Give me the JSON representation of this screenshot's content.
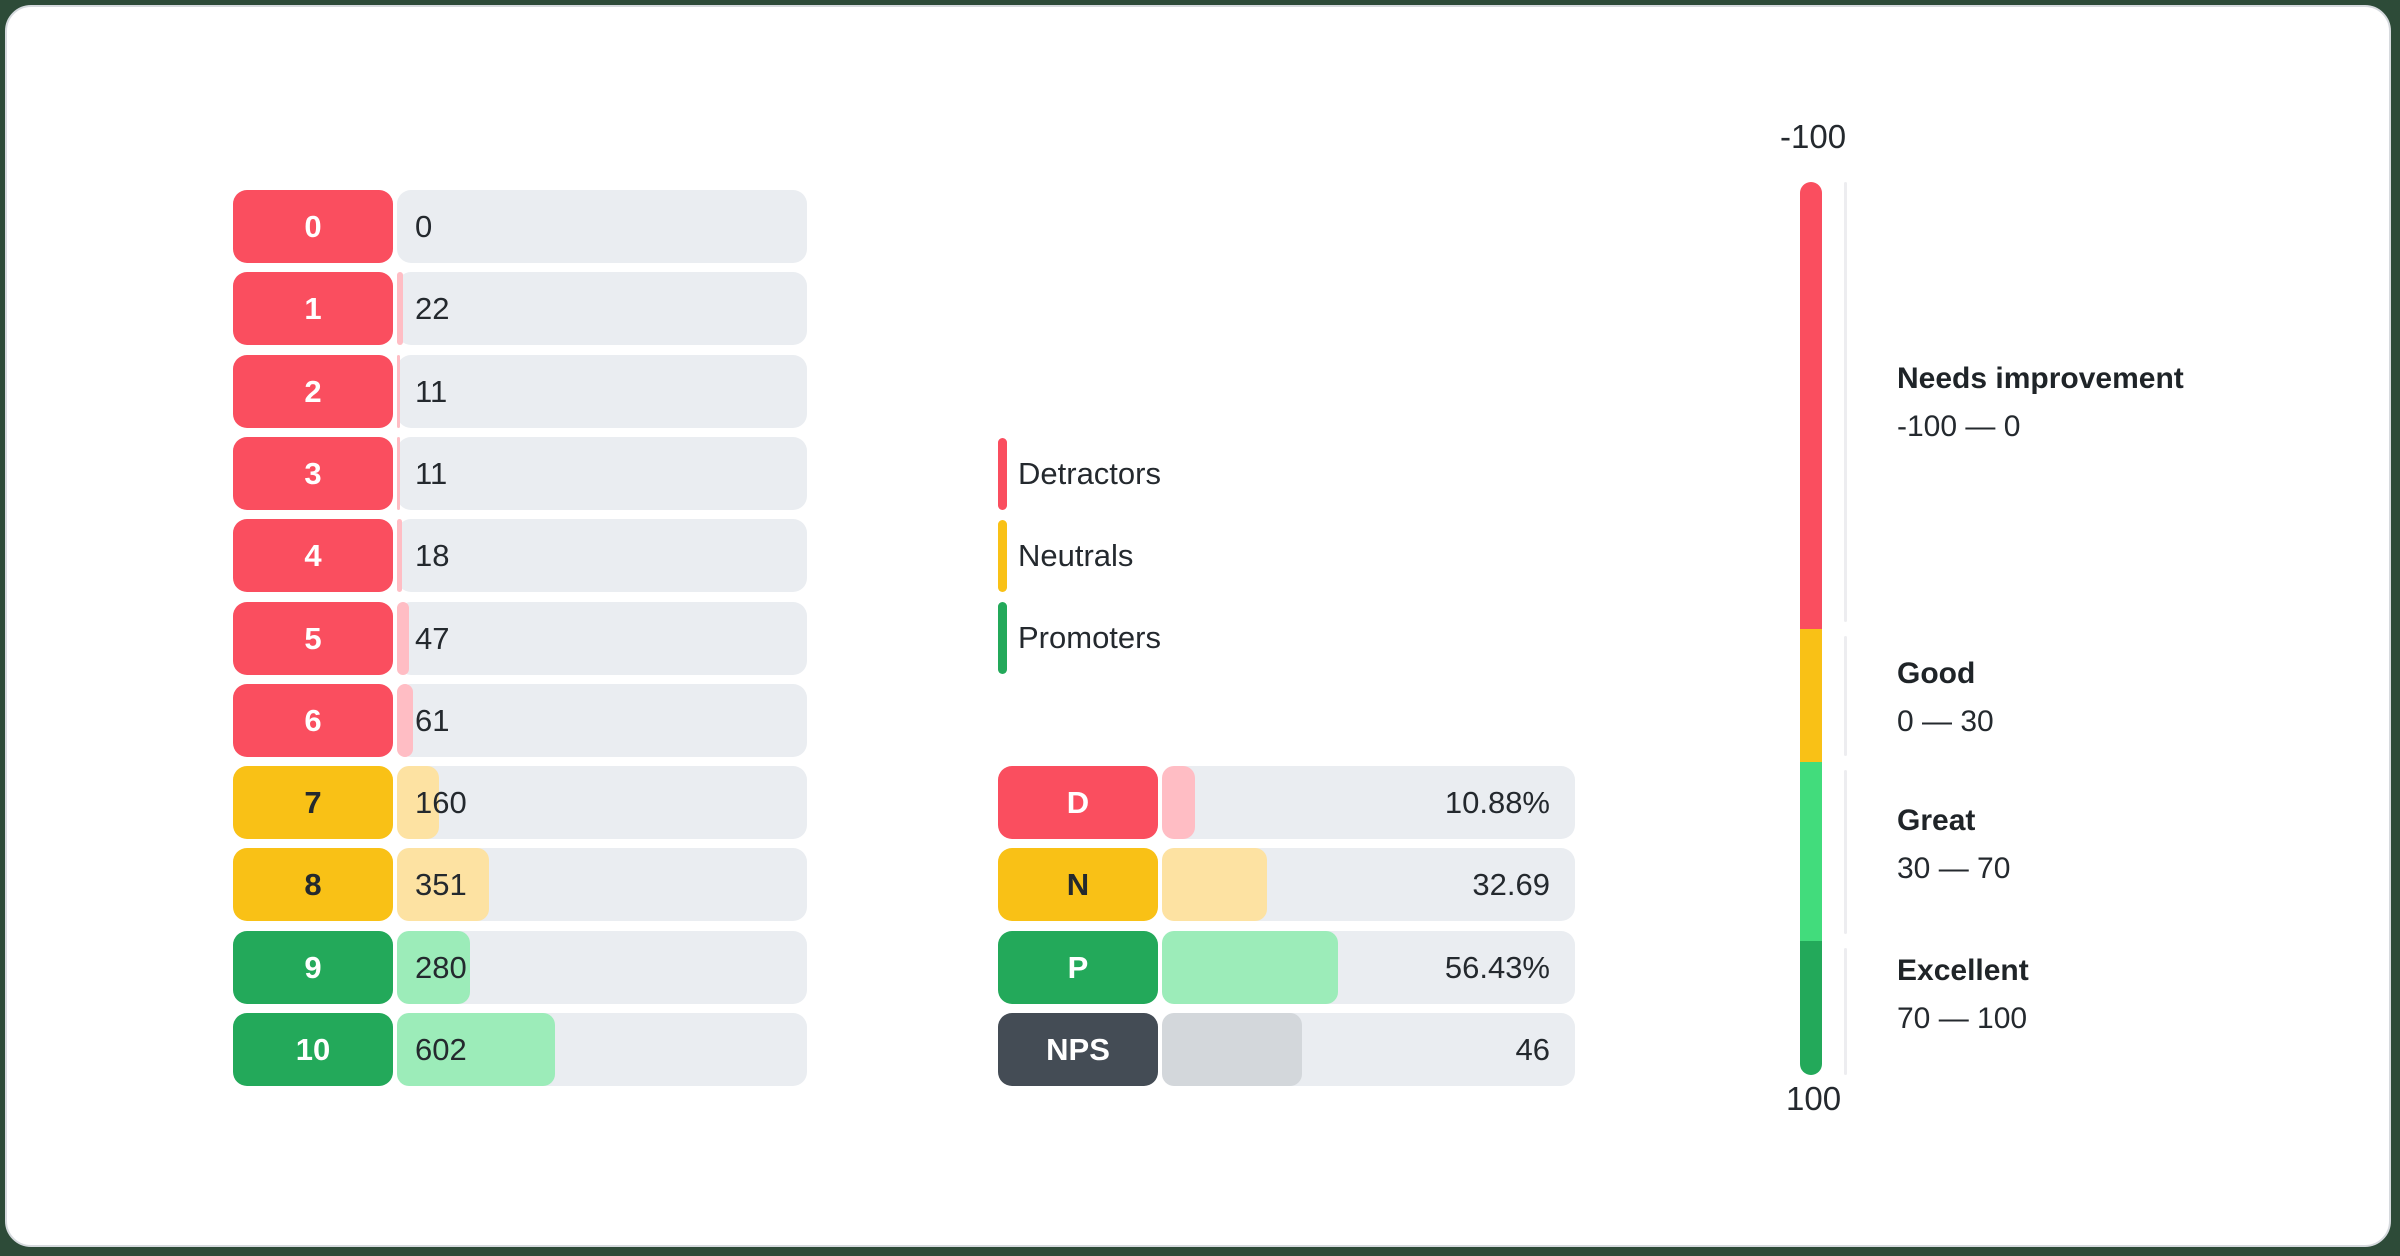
{
  "colors": {
    "detractor": "#fa4e5f",
    "detractor_light": "#ffbdc4",
    "neutral": "#f9c116",
    "neutral_light": "#fde2a2",
    "promoter": "#23a95a",
    "promoter_light": "#9cecb9",
    "great": "#42dc7c",
    "nps": "#444c55",
    "nps_light": "#d3d7db",
    "track": "#eaedf1",
    "divider": "#ededf0",
    "text_dark": "#24292e",
    "text_light": "#ffffff",
    "card_border": "#d6dade",
    "page_background": "#2d4b38"
  },
  "chart_data": {
    "type": "bar",
    "score_distribution": {
      "categories": [
        "0",
        "1",
        "2",
        "3",
        "4",
        "5",
        "6",
        "7",
        "8",
        "9",
        "10"
      ],
      "values": [
        0,
        22,
        11,
        11,
        18,
        47,
        61,
        160,
        351,
        280,
        602
      ],
      "groups": [
        "detractor",
        "detractor",
        "detractor",
        "detractor",
        "detractor",
        "detractor",
        "detractor",
        "neutral",
        "neutral",
        "promoter",
        "promoter"
      ]
    },
    "legend": [
      {
        "label": "Detractors",
        "group": "detractor"
      },
      {
        "label": "Neutrals",
        "group": "neutral"
      },
      {
        "label": "Promoters",
        "group": "promoter"
      }
    ],
    "summary": [
      {
        "label": "D",
        "value_text": "10.88%",
        "group": "detractor",
        "fill_pct": 8.0
      },
      {
        "label": "N",
        "value_text": "32.69",
        "group": "neutral",
        "fill_pct": 25.4
      },
      {
        "label": "P",
        "value_text": "56.43%",
        "group": "promoter",
        "fill_pct": 42.6
      },
      {
        "label": "NPS",
        "value_text": "46",
        "group": "nps",
        "fill_pct": 33.9
      }
    ],
    "gauge": {
      "min_label": "-100",
      "max_label": "100",
      "zones": [
        {
          "name": "Needs improvement",
          "range_label": "-100 — 0",
          "from": -100,
          "to": 0,
          "group": "detractor"
        },
        {
          "name": "Good",
          "range_label": "0 — 30",
          "from": 0,
          "to": 30,
          "group": "neutral"
        },
        {
          "name": "Great",
          "range_label": "30 — 70",
          "from": 30,
          "to": 70,
          "group": "great"
        },
        {
          "name": "Excellent",
          "range_label": "70 — 100",
          "from": 70,
          "to": 100,
          "group": "promoter"
        }
      ]
    }
  }
}
